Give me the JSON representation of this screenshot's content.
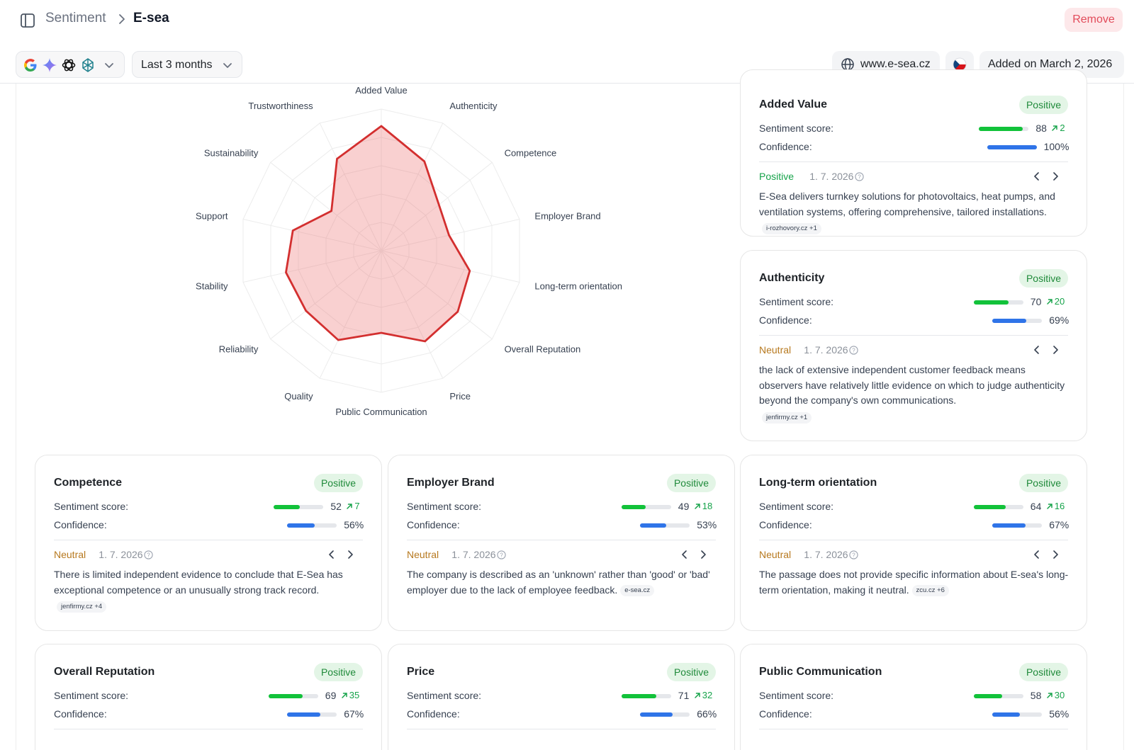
{
  "breadcrumb": {
    "parent": "Sentiment",
    "current": "E-sea"
  },
  "header": {
    "remove_label": "Remove"
  },
  "toolbar": {
    "models": [
      "google-icon",
      "gemini-icon",
      "openai-icon",
      "perplexity-icon"
    ],
    "range_label": "Last 3 months",
    "website": "www.e-sea.cz",
    "country_flag": "czech-flag-icon",
    "added_label": "Added on March 2, 2026"
  },
  "colors": {
    "accent_red": "#d32f2f",
    "positive": "#16a34a",
    "neutral": "#b7791f",
    "score_bar": "#12c23a",
    "confidence_bar": "#2f74e8"
  },
  "chart_data": {
    "type": "radar",
    "scale": [
      0,
      100
    ],
    "axes": [
      "Added Value",
      "Authenticity",
      "Competence",
      "Employer Brand",
      "Long-term orientation",
      "Overall Reputation",
      "Price",
      "Public Communication",
      "Quality",
      "Reliability",
      "Stability",
      "Support",
      "Sustainability",
      "Trustworthiness"
    ],
    "values": [
      88,
      70,
      52,
      49,
      64,
      69,
      71,
      58,
      70,
      68,
      69,
      64,
      45,
      72
    ]
  },
  "cards": [
    {
      "title": "Added Value",
      "badge": "Positive",
      "score_label": "Sentiment score:",
      "score": 88,
      "delta": "2",
      "confidence_label": "Confidence:",
      "confidence": 100,
      "confidence_text": "100%",
      "verdict": "Positive",
      "verdict_type": "pos",
      "date": "1. 7. 2026",
      "text": "E-Sea delivers turnkey solutions for photovoltaics, heat pumps, and ventilation systems, offering comprehensive, tailored installations.",
      "source": "i-rozhovory.cz +1"
    },
    {
      "title": "Authenticity",
      "badge": "Positive",
      "score_label": "Sentiment score:",
      "score": 70,
      "delta": "20",
      "confidence_label": "Confidence:",
      "confidence": 69,
      "confidence_text": "69%",
      "verdict": "Neutral",
      "verdict_type": "neu",
      "date": "1. 7. 2026",
      "text": "the lack of extensive independent customer feedback means observers have relatively little evidence on which to judge authenticity beyond the company's own communications.",
      "source": "jenfirmy.cz +1"
    },
    {
      "title": "Competence",
      "badge": "Positive",
      "score_label": "Sentiment score:",
      "score": 52,
      "delta": "7",
      "confidence_label": "Confidence:",
      "confidence": 56,
      "confidence_text": "56%",
      "verdict": "Neutral",
      "verdict_type": "neu",
      "date": "1. 7. 2026",
      "text": "There is limited independent evidence to conclude that E-Sea has exceptional competence or an unusually strong track record.",
      "source": "jenfirmy.cz +4"
    },
    {
      "title": "Employer Brand",
      "badge": "Positive",
      "score_label": "Sentiment score:",
      "score": 49,
      "delta": "18",
      "confidence_label": "Confidence:",
      "confidence": 53,
      "confidence_text": "53%",
      "verdict": "Neutral",
      "verdict_type": "neu",
      "date": "1. 7. 2026",
      "text": "The company is described as an 'unknown' rather than 'good' or 'bad' employer due to the lack of employee feedback.",
      "source": "e-sea.cz"
    },
    {
      "title": "Long-term orientation",
      "badge": "Positive",
      "score_label": "Sentiment score:",
      "score": 64,
      "delta": "16",
      "confidence_label": "Confidence:",
      "confidence": 67,
      "confidence_text": "67%",
      "verdict": "Neutral",
      "verdict_type": "neu",
      "date": "1. 7. 2026",
      "text": "The passage does not provide specific information about E-sea's long-term orientation, making it neutral.",
      "source": "zcu.cz +6"
    },
    {
      "title": "Overall Reputation",
      "badge": "Positive",
      "score_label": "Sentiment score:",
      "score": 69,
      "delta": "35",
      "confidence_label": "Confidence:",
      "confidence": 67,
      "confidence_text": "67%"
    },
    {
      "title": "Price",
      "badge": "Positive",
      "score_label": "Sentiment score:",
      "score": 71,
      "delta": "32",
      "confidence_label": "Confidence:",
      "confidence": 66,
      "confidence_text": "66%"
    },
    {
      "title": "Public Communication",
      "badge": "Positive",
      "score_label": "Sentiment score:",
      "score": 58,
      "delta": "30",
      "confidence_label": "Confidence:",
      "confidence": 56,
      "confidence_text": "56%"
    }
  ]
}
